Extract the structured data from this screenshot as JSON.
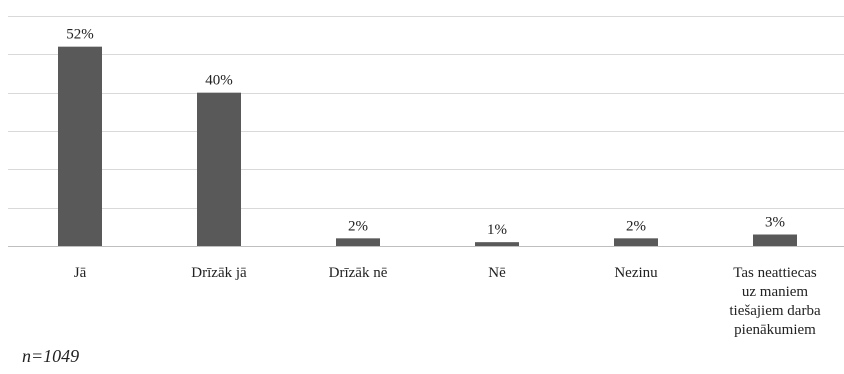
{
  "chart_data": {
    "type": "bar",
    "categories": [
      "Jā",
      "Drīzāk jā",
      "Drīzāk nē",
      "Nē",
      "Nezinu",
      "Tas neattiecas uz maniem tiešajiem darba pienākumiem"
    ],
    "category_lines": [
      [
        "Jā"
      ],
      [
        "Drīzāk jā"
      ],
      [
        "Drīzāk nē"
      ],
      [
        "Nē"
      ],
      [
        "Nezinu"
      ],
      [
        "Tas neattiecas",
        "uz maniem",
        "tiešajiem darba",
        "pienākumiem"
      ]
    ],
    "values": [
      52,
      40,
      2,
      1,
      2,
      3
    ],
    "data_labels": [
      "52%",
      "40%",
      "2%",
      "1%",
      "2%",
      "3%"
    ],
    "unit": "%",
    "ylim": [
      0,
      60
    ],
    "grid": true,
    "bar_color": "#595959",
    "grid_color": "#d9d9d9",
    "title": "",
    "xlabel": "",
    "ylabel": ""
  },
  "note": "n=1049"
}
